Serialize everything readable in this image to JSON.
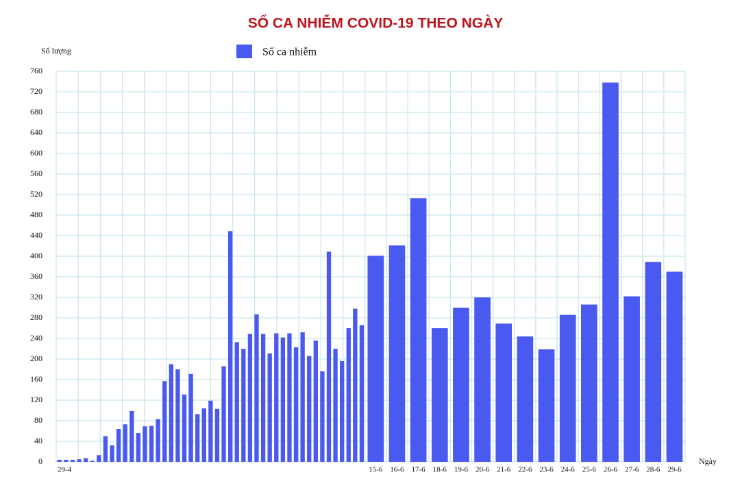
{
  "chart_data": {
    "type": "bar",
    "title": "SỐ CA NHIỄM COVID-19 THEO NGÀY",
    "y_label": "Số lượng",
    "x_label": "Ngày",
    "color": "#4a5af0",
    "grid": true,
    "series": [
      {
        "name": "Số ca nhiễm",
        "color": "#4a5af0",
        "values": [
          4,
          4,
          4,
          5,
          7,
          2,
          13,
          50,
          32,
          64,
          73,
          99,
          56,
          69,
          70,
          83,
          157,
          190,
          180,
          131,
          171,
          93,
          104,
          119,
          103,
          186,
          449,
          233,
          220,
          249,
          287,
          249,
          211,
          250,
          242,
          250,
          223,
          252,
          206,
          236,
          176,
          409,
          220,
          196,
          260,
          298,
          266,
          401,
          421,
          513,
          260,
          300,
          320,
          269,
          244,
          219,
          286,
          306,
          738,
          322,
          389,
          370
        ]
      }
    ],
    "categories": [
      "29-4",
      null,
      null,
      null,
      null,
      null,
      null,
      null,
      null,
      null,
      null,
      null,
      null,
      null,
      null,
      null,
      null,
      null,
      null,
      null,
      null,
      null,
      null,
      null,
      null,
      null,
      null,
      null,
      null,
      null,
      null,
      null,
      null,
      null,
      null,
      null,
      null,
      null,
      null,
      null,
      null,
      null,
      null,
      null,
      null,
      null,
      null,
      "15-6",
      "16-6",
      "17-6",
      "18-6",
      "19-6",
      "20-6",
      "21-6",
      "22-6",
      "23-6",
      "24-6",
      "25-6",
      "26-6",
      "27-6",
      "28-6",
      "29-6"
    ],
    "ylim": [
      0,
      760
    ],
    "yticks": [
      0,
      40,
      80,
      120,
      160,
      200,
      240,
      280,
      320,
      360,
      400,
      440,
      480,
      520,
      560,
      600,
      640,
      680,
      720,
      760
    ]
  }
}
